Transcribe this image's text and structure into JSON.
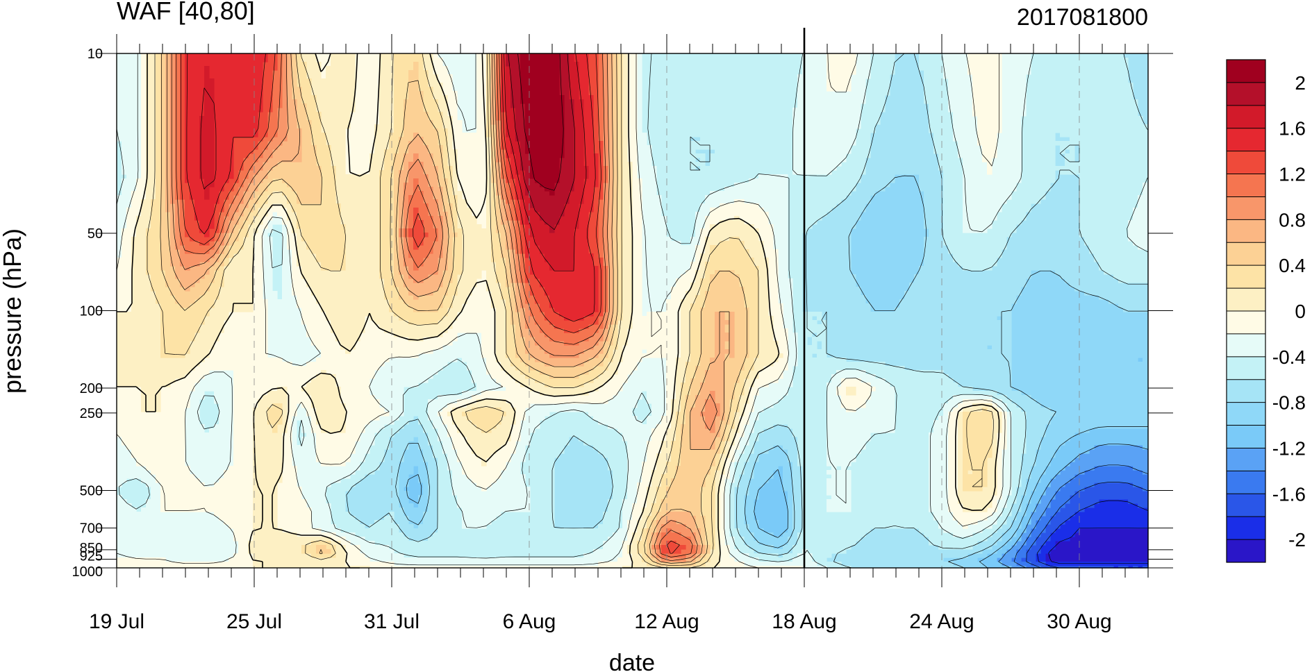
{
  "chart_data": {
    "type": "heatmap",
    "title": "WAF [40,80]",
    "subtitle": "2017081800",
    "xlabel": "date",
    "ylabel": "pressure (hPa)",
    "x_ticks": [
      "19 Jul",
      "25 Jul",
      "31 Jul",
      "6 Aug",
      "12 Aug",
      "18 Aug",
      "24 Aug",
      "30 Aug"
    ],
    "x_range": [
      "2017-07-19",
      "2017-09-02"
    ],
    "y_ticks": [
      "10",
      "50",
      "100",
      "200",
      "250",
      "500",
      "700",
      "850",
      "925",
      "1000"
    ],
    "y_scale": "log",
    "y_range": [
      1000,
      10
    ],
    "vertical_marker": "2017-08-18",
    "colorbar": {
      "labels": [
        "2",
        "1.6",
        "1.2",
        "0.8",
        "0.4",
        "0",
        "-0.4",
        "-0.8",
        "-1.2",
        "-1.6",
        "-2"
      ],
      "levels": [
        -2.2,
        -2,
        -1.8,
        -1.6,
        -1.4,
        -1.2,
        -1,
        -0.8,
        -0.6,
        -0.4,
        -0.2,
        0,
        0.2,
        0.4,
        0.6,
        0.8,
        1,
        1.2,
        1.4,
        1.6,
        1.8,
        2,
        2.2
      ],
      "colors": [
        "#2a16c8",
        "#1a2ee8",
        "#2a56e8",
        "#3a7af0",
        "#5aa2f5",
        "#7acaf8",
        "#8fd8f8",
        "#a6e4f6",
        "#c4f2f6",
        "#e6fbf8",
        "#fffbe6",
        "#fdf0c4",
        "#fde3a6",
        "#fcd195",
        "#fbb783",
        "#f8966a",
        "#f57550",
        "#ef4a3a",
        "#e52830",
        "#d21a2a",
        "#b4102a",
        "#a0001f"
      ]
    },
    "field": {
      "y_levels": [
        10,
        20,
        30,
        50,
        70,
        100,
        150,
        200,
        250,
        300,
        400,
        500,
        600,
        700,
        850,
        925,
        1000
      ],
      "x_dates": [
        "2017-07-19",
        "2017-07-20",
        "2017-07-21",
        "2017-07-22",
        "2017-07-23",
        "2017-07-24",
        "2017-07-25",
        "2017-07-26",
        "2017-07-27",
        "2017-07-28",
        "2017-07-29",
        "2017-07-30",
        "2017-07-31",
        "2017-08-01",
        "2017-08-02",
        "2017-08-03",
        "2017-08-04",
        "2017-08-05",
        "2017-08-06",
        "2017-08-07",
        "2017-08-08",
        "2017-08-09",
        "2017-08-10",
        "2017-08-11",
        "2017-08-12",
        "2017-08-13",
        "2017-08-14",
        "2017-08-15",
        "2017-08-16",
        "2017-08-17",
        "2017-08-18",
        "2017-08-19",
        "2017-08-20",
        "2017-08-21",
        "2017-08-22",
        "2017-08-23",
        "2017-08-24",
        "2017-08-25",
        "2017-08-26",
        "2017-08-27",
        "2017-08-28",
        "2017-08-29",
        "2017-08-30",
        "2017-08-31",
        "2017-09-01",
        "2017-09-02"
      ],
      "values": [
        [
          -0.4,
          -0.2,
          0.4,
          1.4,
          1.6,
          1.4,
          1.6,
          1.2,
          0.2,
          -0.1,
          0.2,
          -0.2,
          0.2,
          0.4,
          -0.2,
          -0.4,
          -0.1,
          1.8,
          2.2,
          2.2,
          1.6,
          1.2,
          0.2,
          -0.4,
          -0.4,
          -0.5,
          -0.5,
          -0.5,
          -0.5,
          -0.5,
          -0.4,
          -0.2,
          -0.1,
          -0.4,
          -0.6,
          -0.6,
          -0.4,
          -0.2,
          -0.1,
          -0.3,
          -0.4,
          -0.5,
          -0.5,
          -0.5,
          -0.6,
          -0.8
        ],
        [
          -0.4,
          -0.2,
          0.4,
          1.4,
          1.7,
          1.4,
          1.5,
          1.0,
          0.6,
          0.2,
          0.0,
          -0.1,
          0.2,
          0.6,
          0.4,
          -0.2,
          -0.2,
          1.6,
          2.1,
          2.2,
          1.8,
          1.3,
          0.2,
          -0.4,
          -0.5,
          -0.6,
          -0.6,
          -0.6,
          -0.5,
          -0.5,
          -0.3,
          -0.2,
          -0.3,
          -0.6,
          -0.7,
          -0.7,
          -0.5,
          -0.3,
          -0.1,
          -0.3,
          -0.5,
          -0.6,
          -0.6,
          -0.5,
          -0.5,
          -0.6
        ],
        [
          -0.5,
          -0.2,
          0.4,
          1.4,
          1.7,
          1.4,
          0.8,
          0.4,
          0.6,
          0.4,
          0.0,
          0.0,
          0.4,
          1.0,
          0.6,
          -0.1,
          -0.2,
          1.2,
          2.0,
          2.1,
          1.8,
          1.4,
          0.2,
          -0.3,
          -0.5,
          -0.6,
          -0.6,
          -0.5,
          -0.4,
          -0.4,
          -0.4,
          -0.4,
          -0.5,
          -0.7,
          -0.8,
          -0.8,
          -0.6,
          -0.4,
          -0.2,
          -0.3,
          -0.5,
          -0.6,
          -0.6,
          -0.5,
          -0.5,
          -0.4
        ],
        [
          -0.3,
          0.1,
          0.4,
          1.2,
          1.5,
          0.6,
          0.0,
          -0.6,
          0.2,
          0.4,
          0.2,
          0.0,
          0.4,
          1.4,
          1.0,
          0.2,
          0.0,
          0.6,
          1.6,
          1.8,
          1.6,
          1.2,
          0.2,
          -0.2,
          -0.4,
          -0.5,
          0.1,
          0.2,
          0.0,
          -0.3,
          -0.6,
          -0.7,
          -0.8,
          -1.0,
          -1.0,
          -0.9,
          -0.6,
          -0.4,
          -0.4,
          -0.6,
          -0.7,
          -0.7,
          -0.6,
          -0.5,
          -0.4,
          -0.3
        ],
        [
          -0.2,
          0.1,
          0.4,
          0.8,
          0.6,
          0.0,
          0.0,
          -0.5,
          0.0,
          0.2,
          0.2,
          0.0,
          0.4,
          1.0,
          0.8,
          0.2,
          0.0,
          0.4,
          1.4,
          1.6,
          1.6,
          1.4,
          0.2,
          -0.2,
          -0.3,
          -0.2,
          0.4,
          0.4,
          0.2,
          -0.3,
          -0.6,
          -0.7,
          -0.8,
          -0.9,
          -0.9,
          -0.8,
          -0.7,
          -0.6,
          -0.6,
          -0.7,
          -0.8,
          -0.8,
          -0.7,
          -0.6,
          -0.5,
          -0.5
        ],
        [
          0.0,
          0.0,
          0.2,
          0.4,
          0.2,
          0.0,
          0.0,
          -0.4,
          -0.2,
          0.0,
          0.2,
          0.0,
          0.2,
          0.4,
          0.4,
          0.0,
          -0.2,
          0.2,
          1.0,
          1.4,
          1.6,
          1.4,
          0.2,
          -0.2,
          -0.2,
          0.2,
          0.6,
          0.6,
          0.2,
          -0.2,
          -0.6,
          -0.6,
          -0.7,
          -0.8,
          -0.8,
          -0.7,
          -0.7,
          -0.7,
          -0.8,
          -0.8,
          -0.9,
          -0.9,
          -0.9,
          -0.9,
          -0.8,
          -0.8
        ],
        [
          0.0,
          0.0,
          0.2,
          0.2,
          0.0,
          -0.2,
          -0.2,
          -0.2,
          -0.3,
          -0.2,
          0.0,
          -0.1,
          -0.2,
          -0.2,
          -0.3,
          -0.4,
          -0.2,
          0.2,
          0.6,
          0.8,
          0.8,
          0.6,
          0.0,
          -0.2,
          -0.2,
          0.2,
          0.6,
          0.6,
          0.2,
          0.0,
          -0.6,
          -0.6,
          -0.7,
          -0.7,
          -0.7,
          -0.7,
          -0.7,
          -0.8,
          -0.8,
          -0.8,
          -0.9,
          -0.9,
          -1.0,
          -1.0,
          -1.0,
          -1.0
        ],
        [
          0.0,
          0.0,
          0.0,
          -0.1,
          -0.4,
          -0.2,
          -0.1,
          0.0,
          0.0,
          0.2,
          -0.1,
          -0.2,
          -0.4,
          -0.4,
          -0.5,
          -0.6,
          -0.3,
          -0.2,
          0.0,
          0.2,
          0.2,
          0.0,
          -0.2,
          -0.4,
          -0.2,
          0.4,
          0.8,
          0.4,
          -0.2,
          -0.3,
          -0.6,
          -0.4,
          0.1,
          -0.2,
          -0.4,
          -0.5,
          -0.5,
          -0.6,
          -0.7,
          -0.8,
          -0.9,
          -1.0,
          -1.0,
          -1.0,
          -1.0,
          -1.0
        ],
        [
          -0.1,
          0.0,
          0.0,
          -0.2,
          -0.6,
          -0.2,
          0.0,
          0.4,
          -0.4,
          0.2,
          0.0,
          -0.1,
          -0.2,
          -0.6,
          -0.2,
          0.2,
          0.4,
          0.2,
          -0.3,
          -0.4,
          -0.5,
          -0.3,
          -0.3,
          -0.5,
          -0.2,
          0.6,
          1.0,
          0.2,
          -0.4,
          -0.5,
          -0.5,
          -0.4,
          -0.2,
          -0.3,
          -0.4,
          -0.5,
          -0.4,
          0.2,
          0.4,
          -0.4,
          -0.7,
          -0.8,
          -0.8,
          -0.8,
          -0.8,
          -0.8
        ],
        [
          -0.2,
          -0.1,
          0.0,
          -0.2,
          -0.4,
          -0.2,
          0.0,
          0.2,
          -0.5,
          0.0,
          0.0,
          -0.3,
          -0.6,
          -0.8,
          -0.4,
          0.0,
          0.2,
          0.1,
          -0.4,
          -0.5,
          -0.6,
          -0.5,
          -0.4,
          -0.3,
          0.0,
          0.6,
          0.8,
          0.0,
          -0.6,
          -0.7,
          -0.5,
          -0.4,
          -0.3,
          -0.4,
          -0.4,
          -0.5,
          -0.3,
          0.2,
          0.4,
          -0.4,
          -0.7,
          -0.9,
          -1.0,
          -1.1,
          -1.1,
          -1.1
        ],
        [
          -0.3,
          -0.2,
          0.0,
          -0.2,
          -0.3,
          -0.2,
          0.0,
          0.1,
          -0.3,
          -0.2,
          -0.2,
          -0.5,
          -0.7,
          -1.0,
          -0.6,
          -0.2,
          0.0,
          -0.2,
          -0.5,
          -0.6,
          -0.7,
          -0.7,
          -0.5,
          -0.2,
          0.2,
          0.6,
          0.4,
          -0.4,
          -0.9,
          -1.0,
          -0.5,
          -0.4,
          -0.4,
          -0.5,
          -0.5,
          -0.5,
          -0.3,
          0.2,
          0.2,
          -0.4,
          -0.8,
          -1.1,
          -1.3,
          -1.4,
          -1.4,
          -1.3
        ],
        [
          -0.4,
          -0.6,
          -0.2,
          -0.1,
          -0.2,
          -0.1,
          0.0,
          0.0,
          -0.2,
          -0.4,
          -0.6,
          -0.8,
          -0.7,
          -1.2,
          -0.6,
          -0.3,
          -0.2,
          -0.3,
          -0.4,
          -0.6,
          -0.8,
          -0.8,
          -0.5,
          -0.1,
          0.4,
          0.6,
          0.2,
          -0.6,
          -1.0,
          -1.1,
          -0.5,
          -0.4,
          -0.4,
          -0.5,
          -0.5,
          -0.5,
          -0.3,
          0.2,
          0.2,
          -0.4,
          -1.0,
          -1.4,
          -1.6,
          -1.7,
          -1.7,
          -1.6
        ],
        [
          -0.3,
          -0.4,
          -0.2,
          -0.2,
          -0.2,
          -0.1,
          0.0,
          0.0,
          -0.1,
          -0.3,
          -0.6,
          -0.7,
          -0.6,
          -1.0,
          -0.6,
          -0.4,
          -0.3,
          -0.4,
          -0.4,
          -0.6,
          -0.8,
          -0.7,
          -0.4,
          0.0,
          0.6,
          0.6,
          0.2,
          -0.6,
          -1.1,
          -1.2,
          -0.5,
          -0.4,
          -0.4,
          -0.5,
          -0.6,
          -0.5,
          -0.3,
          0.0,
          0.0,
          -0.6,
          -1.2,
          -1.6,
          -1.8,
          -1.9,
          -1.9,
          -1.8
        ],
        [
          -0.2,
          -0.2,
          -0.2,
          -0.3,
          -0.3,
          -0.2,
          0.0,
          0.0,
          -0.1,
          -0.3,
          -0.5,
          -0.6,
          -0.5,
          -0.8,
          -0.6,
          -0.4,
          -0.4,
          -0.5,
          -0.5,
          -0.6,
          -0.6,
          -0.6,
          -0.4,
          0.2,
          1.0,
          0.8,
          0.2,
          -0.6,
          -1.0,
          -1.2,
          -0.5,
          -0.4,
          -0.5,
          -0.6,
          -0.6,
          -0.6,
          -0.4,
          -0.2,
          -0.4,
          -0.8,
          -1.4,
          -1.8,
          -2.0,
          -2.0,
          -2.0,
          -2.0
        ],
        [
          -0.2,
          -0.3,
          -0.3,
          -0.4,
          -0.4,
          -0.3,
          0.1,
          0.2,
          0.2,
          0.6,
          0.0,
          -0.3,
          -0.4,
          -0.5,
          -0.5,
          -0.5,
          -0.6,
          -0.5,
          -0.5,
          -0.5,
          -0.5,
          -0.4,
          -0.2,
          0.4,
          1.4,
          1.2,
          0.2,
          -0.4,
          -0.7,
          -0.8,
          -0.4,
          -0.5,
          -0.6,
          -0.7,
          -0.7,
          -0.7,
          -0.6,
          -0.6,
          -0.8,
          -1.2,
          -1.7,
          -2.1,
          -2.1,
          -2.1,
          -2.1,
          -2.1
        ],
        [
          -0.2,
          -0.2,
          -0.2,
          -0.3,
          -0.3,
          -0.2,
          0.0,
          0.0,
          0.0,
          0.2,
          0.0,
          -0.2,
          -0.3,
          -0.4,
          -0.4,
          -0.4,
          -0.4,
          -0.4,
          -0.4,
          -0.4,
          -0.4,
          -0.3,
          -0.2,
          0.2,
          1.0,
          0.8,
          0.1,
          -0.2,
          -0.4,
          -0.5,
          -0.3,
          -0.6,
          -0.8,
          -0.8,
          -0.8,
          -0.8,
          -0.8,
          -0.9,
          -1.1,
          -1.4,
          -1.8,
          -2.2,
          -2.2,
          -2.2,
          -2.2,
          -2.2
        ],
        [
          0.0,
          -0.1,
          -0.1,
          -0.1,
          -0.1,
          -0.1,
          0.0,
          0.0,
          0.0,
          0.0,
          0.0,
          0.0,
          -0.1,
          -0.1,
          -0.1,
          -0.1,
          -0.1,
          -0.1,
          -0.1,
          -0.1,
          -0.1,
          -0.1,
          0.0,
          0.0,
          0.2,
          0.2,
          0.0,
          -0.1,
          -0.2,
          -0.2,
          -0.2,
          -0.4,
          -0.6,
          -0.7,
          -0.7,
          -0.7,
          -0.7,
          -0.8,
          -1.0,
          -1.2,
          -1.5,
          -1.8,
          -1.8,
          -1.8,
          -1.8,
          -1.8
        ]
      ]
    }
  }
}
